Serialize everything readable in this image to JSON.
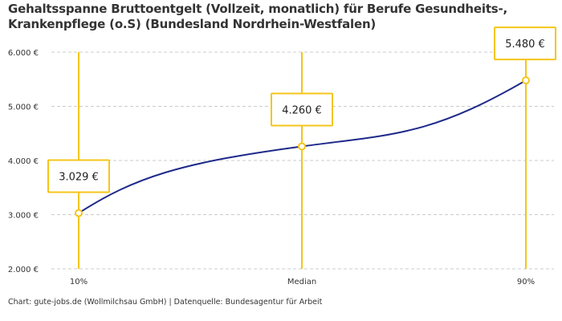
{
  "chart_data": {
    "type": "line",
    "title": "Gehaltsspanne Bruttoentgelt (Vollzeit, monatlich) für Berufe Gesundheits-, Krankenpflege (o.S) (Bundesland Nordrhein-Westfalen)",
    "categories": [
      "10%",
      "Median",
      "90%"
    ],
    "values": [
      3029,
      4260,
      5480
    ],
    "data_labels": [
      "3.029 €",
      "4.260 €",
      "5.480 €"
    ],
    "ylim": [
      2000,
      6000
    ],
    "yticks": [
      2000,
      3000,
      4000,
      5000,
      6000
    ],
    "ytick_labels": [
      "2.000 €",
      "3.000 €",
      "4.000 €",
      "5.000 €",
      "6.000 €"
    ],
    "grid": true,
    "colors": {
      "line": "#1f2a8a",
      "accent": "#f5c518",
      "grid": "#cccccc"
    }
  },
  "source": "Chart: gute-jobs.de (Wollmilchsau GmbH) | Datenquelle: Bundesagentur für Arbeit"
}
